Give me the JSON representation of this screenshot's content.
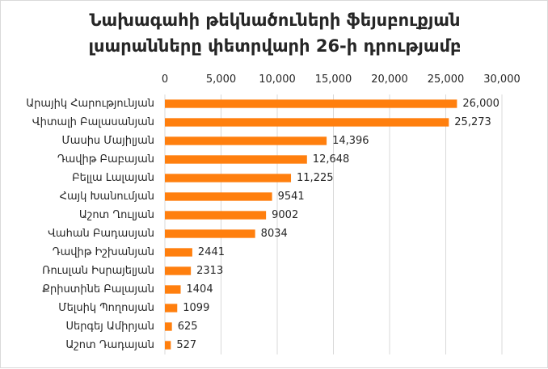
{
  "chart_data": {
    "type": "bar",
    "orientation": "horizontal",
    "title_lines": [
      "Նախագահի թեկնածուների ֆեյսբուքյան",
      "լսարանները փետրվարի 26-ի դրությամբ"
    ],
    "categories": [
      "Արայիկ Հարությունյան",
      "Վիտալի Բալասանյան",
      "Մասիս Մայիլյան",
      "Դավիթ Բաբայան",
      "Բելլա Լալայան",
      "Հայկ Խանումյան",
      "Աշոտ Ղուլյան",
      "Վահան Բադասյան",
      "Դավիթ Իշխանյան",
      "Ռուսլան Իսրայելյան",
      "Քրիստինե Բալայան",
      "Մելսիկ Պողոսյան",
      "Սերգեյ Ամիրյան",
      "Աշոտ Դադայան"
    ],
    "values": [
      26000,
      25273,
      14396,
      12648,
      11225,
      9541,
      9002,
      8034,
      2441,
      2313,
      1404,
      1099,
      625,
      527
    ],
    "value_labels": [
      "26,000",
      "25,273",
      "14,396",
      "12,648",
      "11,225",
      "9541",
      "9002",
      "8034",
      "2441",
      "2313",
      "1404",
      "1099",
      "625",
      "527"
    ],
    "x_ticks": [
      0,
      5000,
      10000,
      15000,
      20000,
      25000,
      30000
    ],
    "x_tick_labels": [
      "0",
      "5,000",
      "10,000",
      "15,000",
      "20,000",
      "25,000",
      "30,000"
    ],
    "xlim": [
      0,
      30000
    ],
    "x_axis_position": "top",
    "grid": true,
    "legend": "none",
    "bar_color": "#ff7f0e",
    "grid_color": "#d9d9d9",
    "text_color": "#262626"
  }
}
